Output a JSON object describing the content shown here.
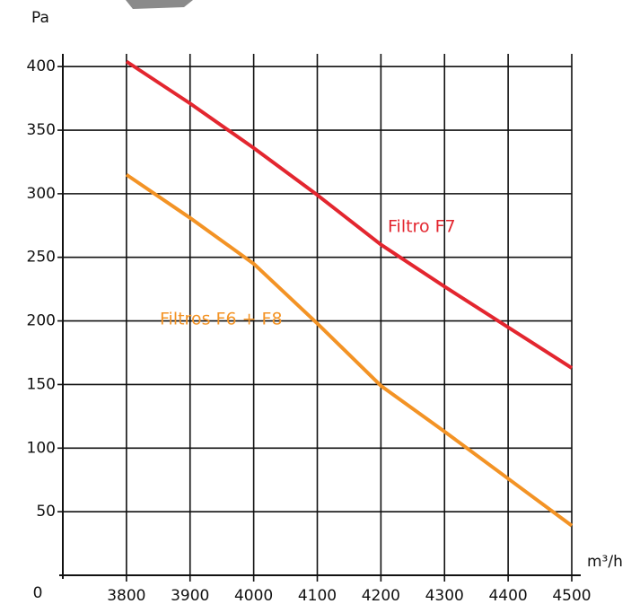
{
  "chart_data": {
    "type": "line",
    "y_label": "Pa",
    "x_label": "m³/h",
    "x": [
      3800,
      3900,
      4000,
      4100,
      4200,
      4300,
      4400,
      4500
    ],
    "series": [
      {
        "name": "Filtro F7",
        "color": "#e3262f",
        "values": [
          404,
          371,
          336,
          299,
          260,
          227,
          195,
          163
        ]
      },
      {
        "name": "Filtros F6 + F8",
        "color": "#f39325",
        "values": [
          315,
          281,
          245,
          198,
          149,
          113,
          76,
          39
        ]
      }
    ],
    "xlim": [
      3700,
      4500
    ],
    "xticks": [
      3800,
      3900,
      4000,
      4100,
      4200,
      4300,
      4400,
      4500
    ],
    "ylim": [
      0,
      410
    ],
    "yticks": [
      0,
      50,
      100,
      150,
      200,
      250,
      300,
      350,
      400
    ],
    "grid": true
  }
}
